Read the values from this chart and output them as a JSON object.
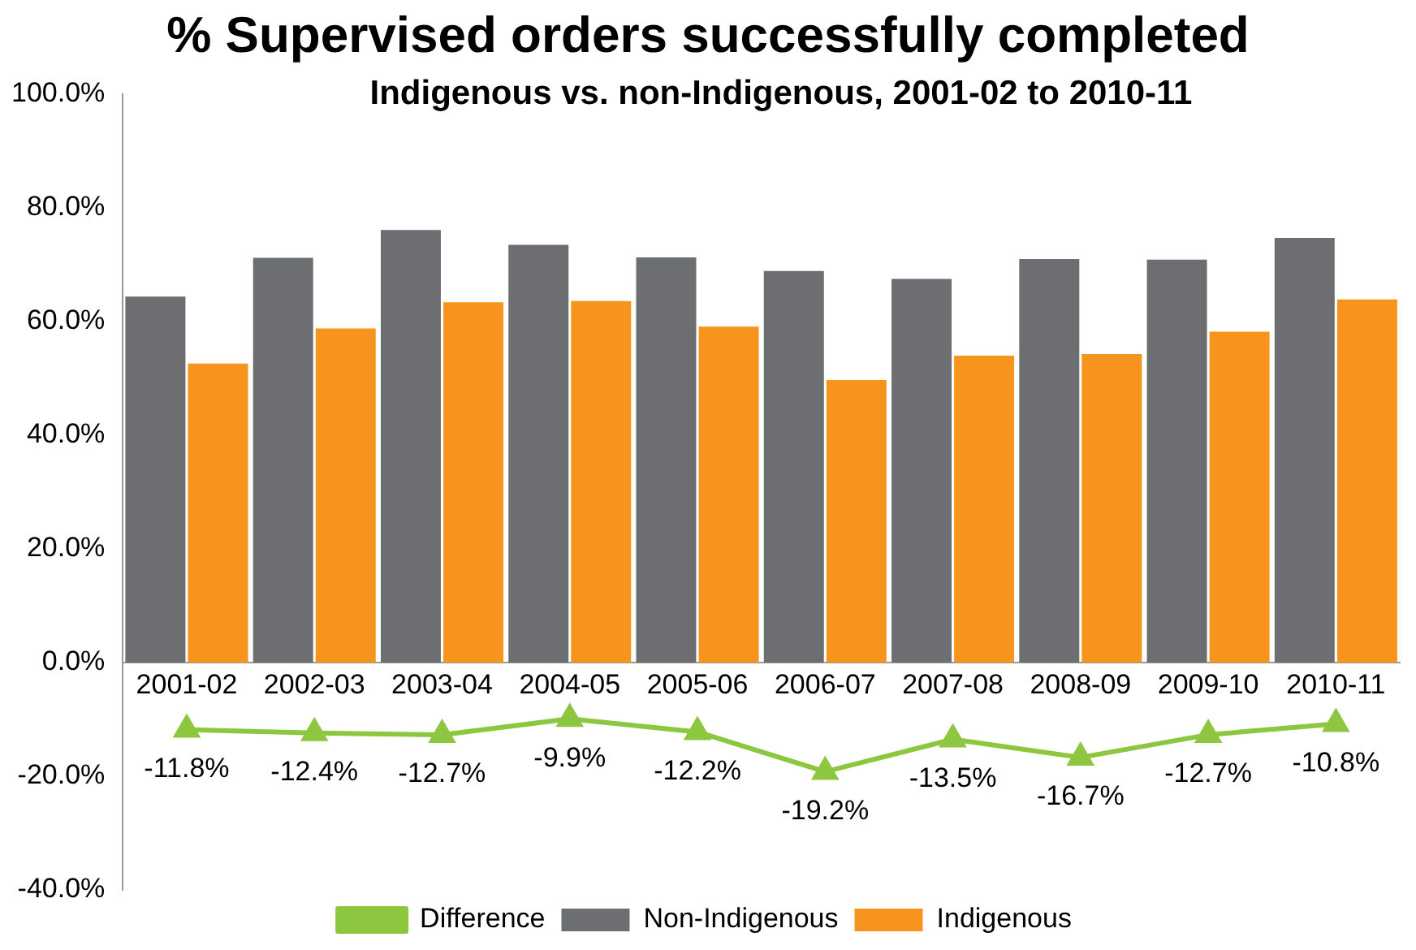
{
  "chart_data": {
    "type": "bar",
    "title": "% Supervised orders successfully completed",
    "subtitle": "Indigenous vs. non-Indigenous, 2001-02 to 2010-11",
    "categories": [
      "2001-02",
      "2002-03",
      "2003-04",
      "2004-05",
      "2005-06",
      "2006-07",
      "2007-08",
      "2008-09",
      "2009-10",
      "2010-11"
    ],
    "series": [
      {
        "name": "Non-Indigenous",
        "color": "#6d6e71",
        "values": [
          64.4,
          71.2,
          76.1,
          73.5,
          71.3,
          68.9,
          67.5,
          71.0,
          70.9,
          74.7
        ]
      },
      {
        "name": "Indigenous",
        "color": "#f7941d",
        "values": [
          52.6,
          58.8,
          63.4,
          63.6,
          59.1,
          49.7,
          54.0,
          54.3,
          58.2,
          63.9
        ]
      },
      {
        "name": "Difference",
        "type": "line",
        "color": "#8dc63f",
        "marker": "triangle",
        "values": [
          -11.8,
          -12.4,
          -12.7,
          -9.9,
          -12.2,
          -19.2,
          -13.5,
          -16.7,
          -12.7,
          -10.8
        ],
        "value_labels": [
          "-11.8%",
          "-12.4%",
          "-12.7%",
          "-9.9%",
          "-12.2%",
          "-19.2%",
          "-13.5%",
          "-16.7%",
          "-12.7%",
          "-10.8%"
        ]
      }
    ],
    "ylim": [
      -40,
      100
    ],
    "yticks": [
      {
        "value": -40,
        "label": "-40.0%"
      },
      {
        "value": -20,
        "label": "-20.0%"
      },
      {
        "value": 0,
        "label": "0.0%"
      },
      {
        "value": 20,
        "label": "20.0%"
      },
      {
        "value": 40,
        "label": "40.0%"
      },
      {
        "value": 60,
        "label": "60.0%"
      },
      {
        "value": 80,
        "label": "80.0%"
      },
      {
        "value": 100,
        "label": "100.0%"
      }
    ],
    "grid": false,
    "legend": "bottom"
  }
}
